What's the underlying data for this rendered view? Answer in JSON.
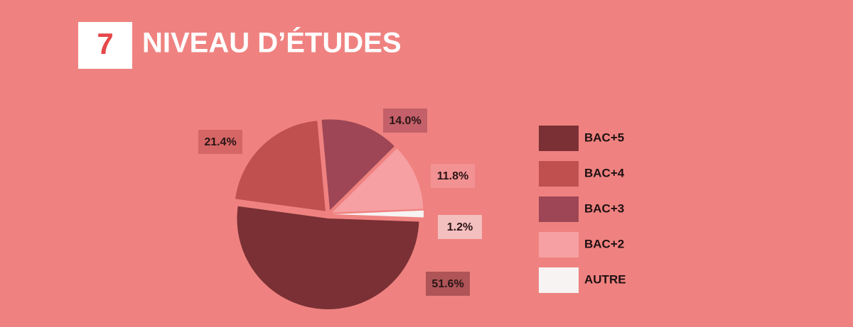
{
  "section_number": "7",
  "chart_data": {
    "type": "pie",
    "title": "NIVEAU D’ÉTUDES",
    "categories": [
      "BAC+5",
      "BAC+4",
      "BAC+3",
      "BAC+2",
      "AUTRE"
    ],
    "values": [
      51.6,
      21.4,
      14.0,
      11.8,
      1.2
    ],
    "value_labels": [
      "51.6%",
      "21.4%",
      "14.0%",
      "11.8%",
      "1.2%"
    ],
    "colors": [
      "#7a3035",
      "#c0504f",
      "#9e4655",
      "#f6a0a3",
      "#f7f3f3"
    ],
    "legend": "right"
  }
}
